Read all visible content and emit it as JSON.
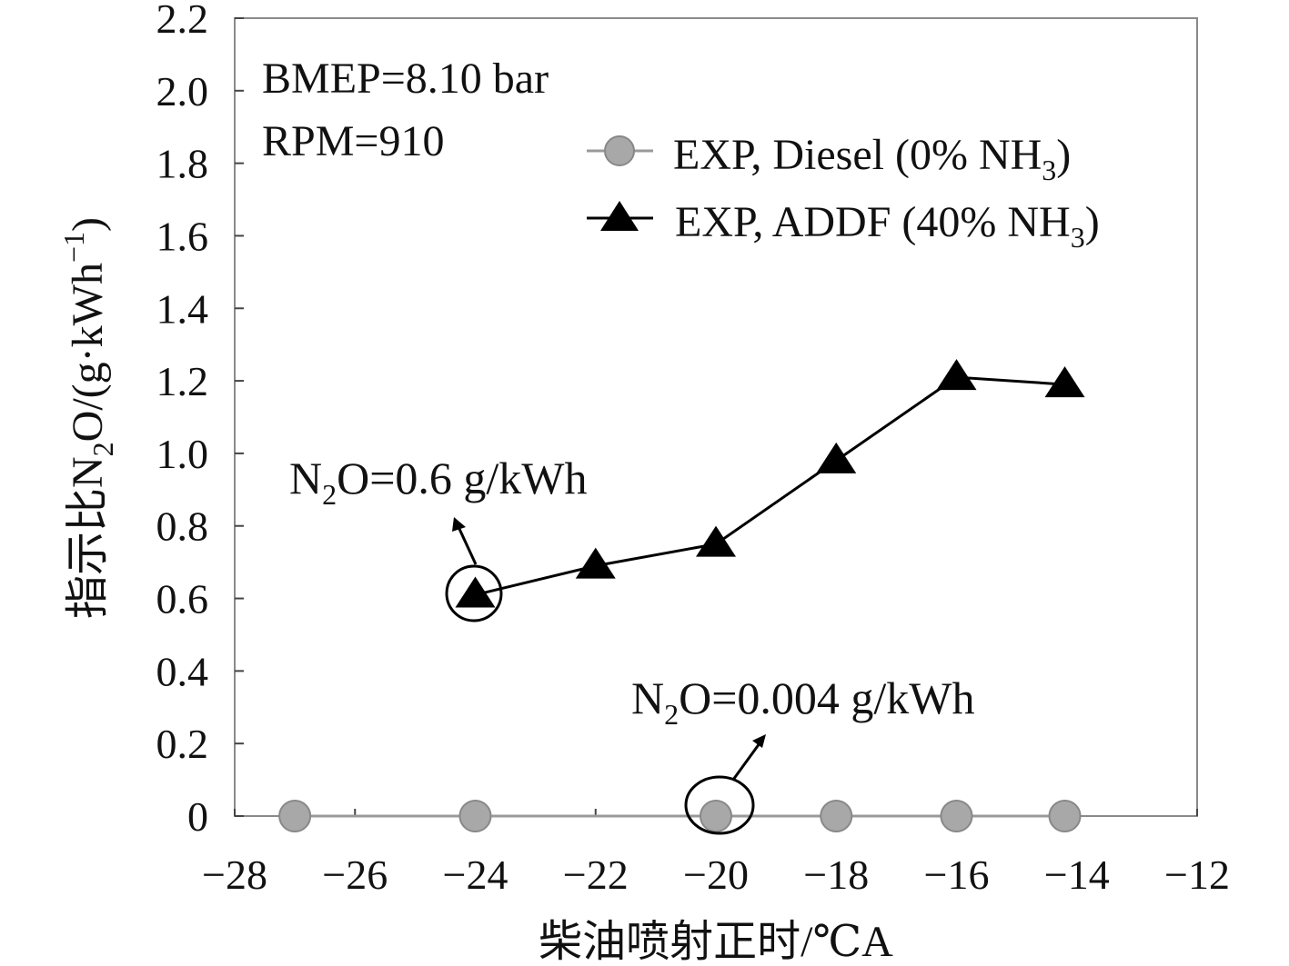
{
  "chart_data": {
    "type": "line",
    "title": "",
    "xlabel": "柴油喷射正时/℃A",
    "ylabel_parts": {
      "pre": "指示比N",
      "sub1": "2",
      "mid": "O/(g·kWh",
      "sup": "−1",
      "post": ")"
    },
    "xlim": [
      -28,
      -12
    ],
    "ylim": [
      0,
      2.2
    ],
    "x_ticks": [
      -28,
      -26,
      -24,
      -22,
      -20,
      -18,
      -16,
      -14,
      -12
    ],
    "x_tick_labels": [
      "−28",
      "−26",
      "−24",
      "−22",
      "−20",
      "−18",
      "−16",
      "−14",
      "−12"
    ],
    "y_ticks": [
      0,
      0.2,
      0.4,
      0.6,
      0.8,
      1.0,
      1.2,
      1.4,
      1.6,
      1.8,
      2.0,
      2.2
    ],
    "y_tick_labels": [
      "0",
      "0.2",
      "0.4",
      "0.6",
      "0.8",
      "1.0",
      "1.2",
      "1.4",
      "1.6",
      "1.8",
      "2.0",
      "2.2"
    ],
    "grid": false,
    "legend_position": "top-right",
    "series": [
      {
        "name": "EXP, Diesel (0% NH3)",
        "legend_main": "EXP, Diesel (0% NH",
        "legend_sub": "3",
        "legend_post": ")",
        "marker": "circle",
        "color": "#9a9a9a",
        "x": [
          -27,
          -24,
          -20,
          -18,
          -16,
          -14.2
        ],
        "y": [
          0,
          0,
          0,
          0,
          0,
          0
        ]
      },
      {
        "name": "EXP, ADDF (40% NH3)",
        "legend_main": "EXP, ADDF (40% NH",
        "legend_sub": "3",
        "legend_post": ")",
        "marker": "triangle",
        "color": "#000000",
        "x": [
          -24,
          -22,
          -20,
          -18,
          -16,
          -14.2
        ],
        "y": [
          0.61,
          0.69,
          0.75,
          0.98,
          1.21,
          1.19
        ]
      }
    ],
    "annotations": [
      {
        "id": "cond1",
        "text": "BMEP=8.10 bar"
      },
      {
        "id": "cond2",
        "text": "RPM=910"
      },
      {
        "id": "addf",
        "pre": "N",
        "sub": "2",
        "post": "O=0.6 g/kWh",
        "circle_x": -24,
        "circle_y": 0.61
      },
      {
        "id": "diesel",
        "pre": "N",
        "sub": "2",
        "post": "O=0.004 g/kWh",
        "circle_x": -20,
        "circle_y": 0
      }
    ]
  }
}
